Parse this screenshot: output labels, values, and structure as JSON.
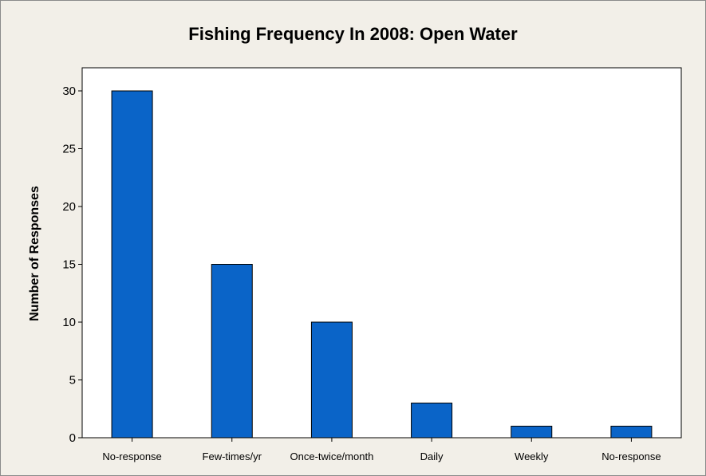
{
  "chart_data": {
    "type": "bar",
    "title": "Fishing Frequency In 2008: Open Water",
    "xlabel": "",
    "ylabel": "Number of Responses",
    "categories": [
      "No-response",
      "Few-times/yr",
      "Once-twice/month",
      "Daily",
      "Weekly",
      "No-response"
    ],
    "values": [
      30,
      15,
      10,
      3,
      1,
      1
    ],
    "ylim": [
      0,
      32
    ],
    "yticks": [
      0,
      5,
      10,
      15,
      20,
      25,
      30
    ],
    "grid": false,
    "bar_color": "#0a64c8",
    "background_color": "#f2efe8",
    "plot_background_color": "#ffffff"
  }
}
